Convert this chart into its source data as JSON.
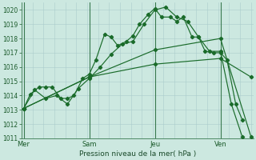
{
  "bg_color": "#cce8e0",
  "grid_color": "#aacccc",
  "line_color": "#1a6b2a",
  "xlabel": "Pression niveau de la mer( hPa )",
  "ylim": [
    1011,
    1020.5
  ],
  "yticks": [
    1011,
    1012,
    1013,
    1014,
    1015,
    1016,
    1017,
    1018,
    1019,
    1020
  ],
  "xtick_labels": [
    "Mer",
    "Sam",
    "Jeu",
    "Ven"
  ],
  "xtick_positions": [
    0,
    3,
    6,
    9
  ],
  "xlim": [
    -0.1,
    10.5
  ],
  "series": [
    {
      "x": [
        0,
        0.3,
        0.7,
        1.0,
        1.3,
        1.7,
        2.0,
        2.3,
        2.7,
        3.0,
        3.3,
        3.7,
        4.0,
        4.3,
        4.7,
        5.0,
        5.3,
        5.7,
        6.0,
        6.3,
        6.7,
        7.0,
        7.3,
        7.7,
        8.0,
        8.3,
        8.7,
        9.0,
        9.3,
        9.7,
        10.0
      ],
      "y": [
        1013.1,
        1014.1,
        1014.6,
        1014.6,
        1014.6,
        1013.8,
        1013.8,
        1014.0,
        1015.2,
        1015.5,
        1016.5,
        1018.3,
        1018.1,
        1017.5,
        1017.8,
        1018.2,
        1019.0,
        1019.7,
        1020.1,
        1019.5,
        1019.5,
        1019.2,
        1019.5,
        1018.1,
        1018.1,
        1017.1,
        1017.0,
        1017.0,
        1016.5,
        1013.4,
        1012.3
      ]
    },
    {
      "x": [
        0,
        0.5,
        1.0,
        1.5,
        2.0,
        2.5,
        3.0,
        3.5,
        4.0,
        4.5,
        5.0,
        5.5,
        6.0,
        6.5,
        7.0,
        7.5,
        8.0,
        8.5,
        9.0,
        9.5,
        10.0
      ],
      "y": [
        1013.1,
        1014.4,
        1013.8,
        1014.0,
        1013.4,
        1014.5,
        1015.2,
        1016.0,
        1016.9,
        1017.6,
        1017.8,
        1019.0,
        1020.0,
        1020.2,
        1019.5,
        1019.2,
        1018.1,
        1017.1,
        1017.1,
        1013.4,
        1011.1
      ]
    },
    {
      "x": [
        0,
        3,
        6,
        9,
        10.4
      ],
      "y": [
        1013.1,
        1015.3,
        1016.2,
        1016.6,
        1015.3
      ]
    },
    {
      "x": [
        0,
        3,
        6,
        9,
        10.4
      ],
      "y": [
        1013.1,
        1015.3,
        1017.2,
        1018.0,
        1011.1
      ]
    }
  ]
}
